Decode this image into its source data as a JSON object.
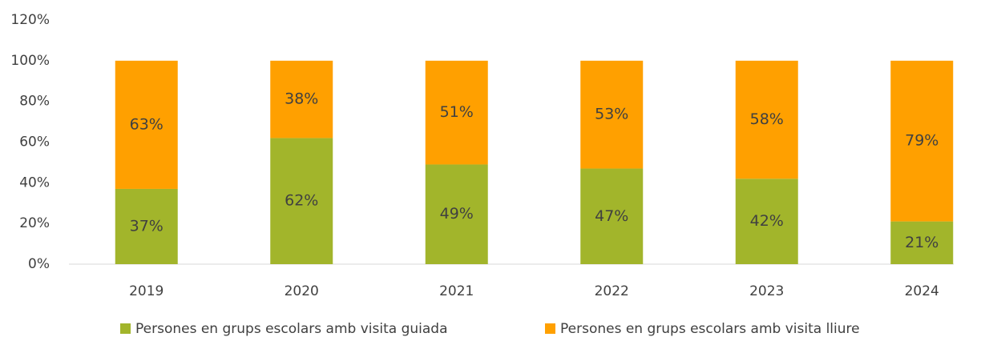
{
  "chart_data": {
    "type": "stacked_bar",
    "categories": [
      "2019",
      "2020",
      "2021",
      "2022",
      "2023",
      "2024"
    ],
    "series": [
      {
        "name": "Persones en grups escolars amb visita guiada",
        "color": "#a2b52b",
        "values": [
          37,
          62,
          49,
          47,
          42,
          21
        ],
        "value_labels": [
          "37%",
          "62%",
          "49%",
          "47%",
          "42%",
          "21%"
        ]
      },
      {
        "name": "Persones en grups escolars amb visita lliure",
        "color": "#ffa000",
        "values": [
          63,
          38,
          51,
          53,
          58,
          79
        ],
        "value_labels": [
          "63%",
          "38%",
          "51%",
          "53%",
          "58%",
          "79%"
        ]
      }
    ],
    "ylim": [
      0,
      120
    ],
    "yticks": [
      {
        "value": 0,
        "label": "0%"
      },
      {
        "value": 20,
        "label": "20%"
      },
      {
        "value": 40,
        "label": "40%"
      },
      {
        "value": 60,
        "label": "60%"
      },
      {
        "value": 80,
        "label": "80%"
      },
      {
        "value": 100,
        "label": "100%"
      },
      {
        "value": 120,
        "label": "120%"
      }
    ],
    "grid": false,
    "legend": "bottom"
  }
}
